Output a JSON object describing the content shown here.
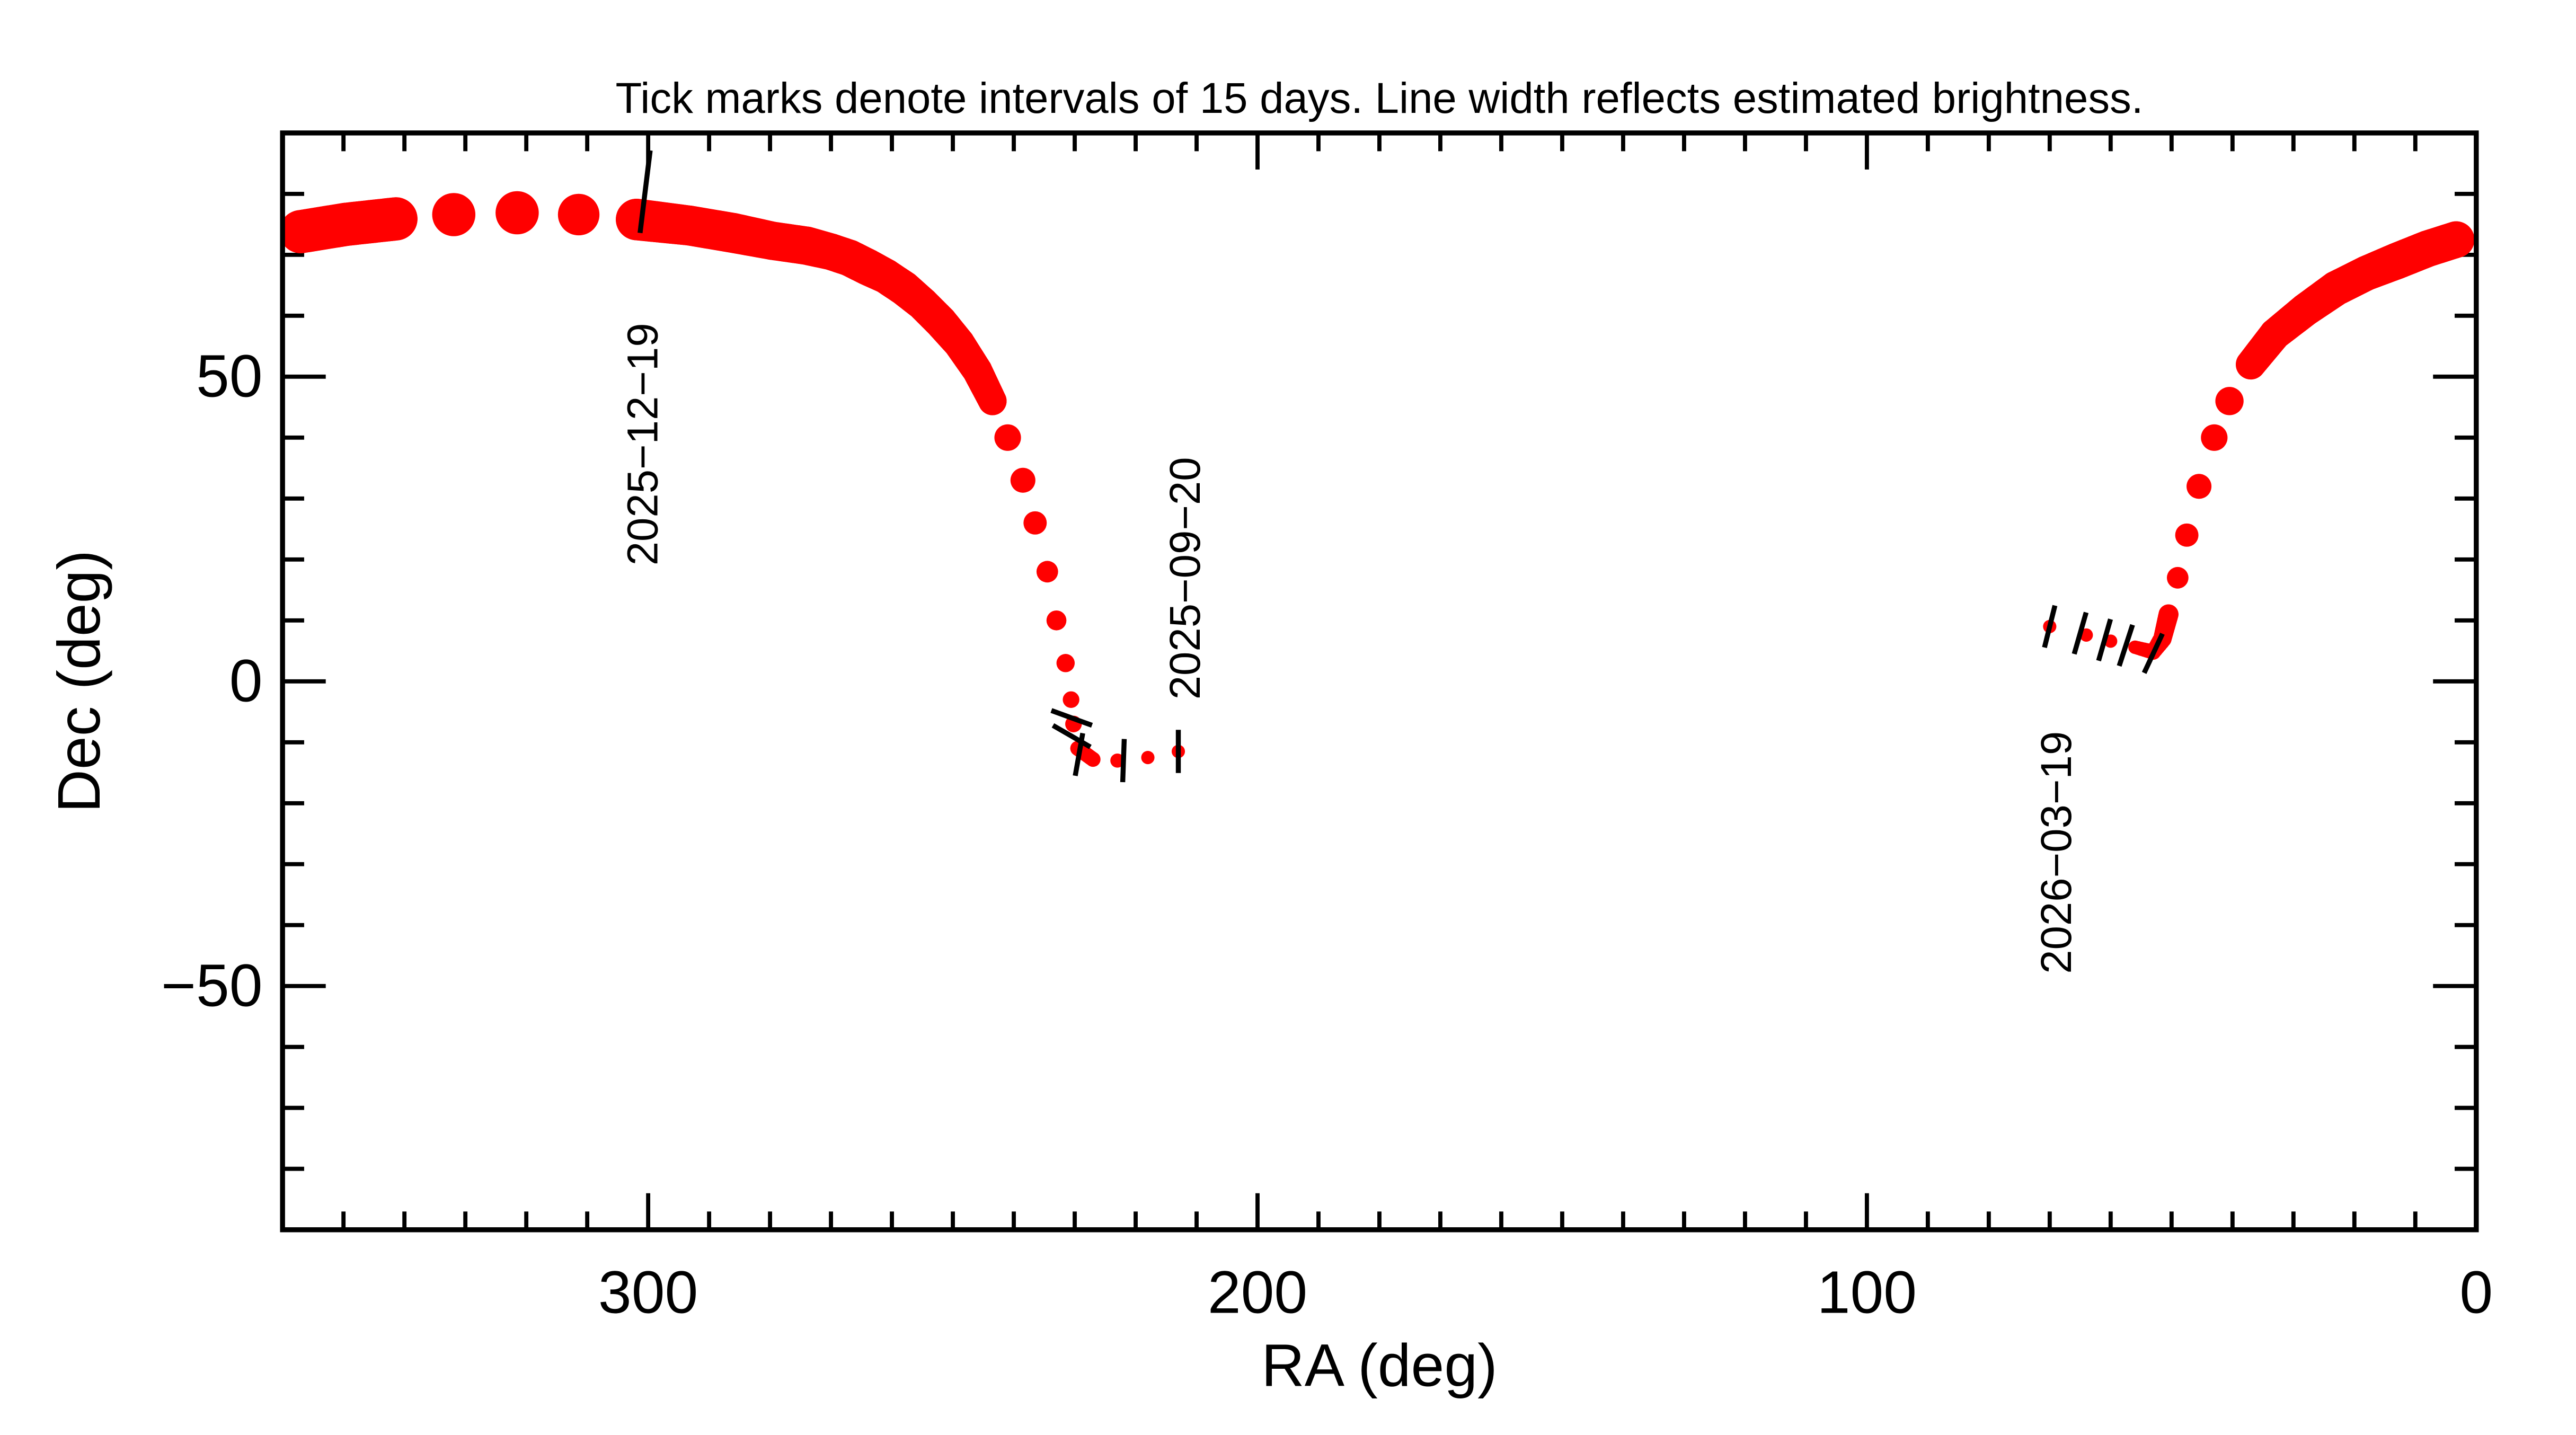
{
  "chart_data": {
    "type": "line",
    "title": "Tick marks denote intervals of 15 days.  Line width reflects estimated brightness.",
    "xlabel": "RA (deg)",
    "ylabel": "Dec (deg)",
    "xlim": [
      360,
      0
    ],
    "ylim": [
      -90,
      90
    ],
    "x_ticks": [
      300,
      200,
      100,
      0
    ],
    "x_tick_labels": [
      "300",
      "200",
      "100",
      "0"
    ],
    "y_ticks": [
      50,
      0,
      -50
    ],
    "y_tick_labels": [
      "50",
      "0",
      "−50"
    ],
    "x_minor_step": 10,
    "y_minor_step": 10,
    "grid": false,
    "line_color": "#ff0000",
    "tick_color": "#000000",
    "series": [
      {
        "points": [
          {
            "ra": 213,
            "dec": -11.5,
            "brightness_weight": 8
          },
          {
            "ra": 218,
            "dec": -12.5,
            "brightness_weight": 8
          },
          {
            "ra": 223,
            "dec": -13,
            "brightness_weight": 8.5
          },
          {
            "ra": 227,
            "dec": -12.8,
            "brightness_weight": 9
          },
          {
            "ra": 229.5,
            "dec": -11,
            "brightness_weight": 9
          },
          {
            "ra": 230.2,
            "dec": -7,
            "brightness_weight": 10
          },
          {
            "ra": 230.6,
            "dec": -3,
            "brightness_weight": 10
          },
          {
            "ra": 231.5,
            "dec": 3,
            "brightness_weight": 11
          },
          {
            "ra": 233,
            "dec": 10,
            "brightness_weight": 12
          },
          {
            "ra": 234.5,
            "dec": 18,
            "brightness_weight": 13
          },
          {
            "ra": 236.5,
            "dec": 26,
            "brightness_weight": 14
          },
          {
            "ra": 238.5,
            "dec": 33,
            "brightness_weight": 15
          },
          {
            "ra": 241,
            "dec": 40,
            "brightness_weight": 16
          },
          {
            "ra": 243.5,
            "dec": 46,
            "brightness_weight": 17
          },
          {
            "ra": 246,
            "dec": 51,
            "brightness_weight": 18
          },
          {
            "ra": 249,
            "dec": 55.5,
            "brightness_weight": 19
          },
          {
            "ra": 252,
            "dec": 59,
            "brightness_weight": 20
          },
          {
            "ra": 255,
            "dec": 62,
            "brightness_weight": 20
          },
          {
            "ra": 258,
            "dec": 64.5,
            "brightness_weight": 21
          },
          {
            "ra": 261,
            "dec": 66.5,
            "brightness_weight": 21
          },
          {
            "ra": 264,
            "dec": 68,
            "brightness_weight": 22
          },
          {
            "ra": 267,
            "dec": 69.5,
            "brightness_weight": 22
          },
          {
            "ra": 270,
            "dec": 70.5,
            "brightness_weight": 22
          },
          {
            "ra": 274,
            "dec": 71.5,
            "brightness_weight": 23
          },
          {
            "ra": 279.6,
            "dec": 72.3,
            "brightness_weight": 23
          },
          {
            "ra": 286.1,
            "dec": 73.6,
            "brightness_weight": 24
          },
          {
            "ra": 293.2,
            "dec": 74.8,
            "brightness_weight": 24
          },
          {
            "ra": 301.9,
            "dec": 75.8,
            "brightness_weight": 25
          },
          {
            "ra": 311.4,
            "dec": 76.6,
            "brightness_weight": 25
          },
          {
            "ra": 321.5,
            "dec": 76.9,
            "brightness_weight": 26
          },
          {
            "ra": 331.9,
            "dec": 76.6,
            "brightness_weight": 26
          },
          {
            "ra": 341.4,
            "dec": 75.9,
            "brightness_weight": 26
          },
          {
            "ra": 349.6,
            "dec": 75,
            "brightness_weight": 26
          },
          {
            "ra": 357,
            "dec": 73.8,
            "brightness_weight": 26
          }
        ]
      },
      {
        "points": [
          {
            "ra": 3.3,
            "dec": 72.5,
            "brightness_weight": 22
          },
          {
            "ra": 8,
            "dec": 71,
            "brightness_weight": 22
          },
          {
            "ra": 13,
            "dec": 69,
            "brightness_weight": 22
          },
          {
            "ra": 18,
            "dec": 67,
            "brightness_weight": 21
          },
          {
            "ra": 23,
            "dec": 64.5,
            "brightness_weight": 21
          },
          {
            "ra": 28,
            "dec": 61,
            "brightness_weight": 20
          },
          {
            "ra": 33,
            "dec": 57,
            "brightness_weight": 19
          },
          {
            "ra": 37,
            "dec": 52,
            "brightness_weight": 18
          },
          {
            "ra": 40.5,
            "dec": 46,
            "brightness_weight": 17
          },
          {
            "ra": 43,
            "dec": 40,
            "brightness_weight": 16
          },
          {
            "ra": 45.5,
            "dec": 32,
            "brightness_weight": 15
          },
          {
            "ra": 47.5,
            "dec": 24,
            "brightness_weight": 14
          },
          {
            "ra": 49,
            "dec": 17,
            "brightness_weight": 13
          },
          {
            "ra": 50.5,
            "dec": 11,
            "brightness_weight": 12
          },
          {
            "ra": 51.5,
            "dec": 7,
            "brightness_weight": 11
          },
          {
            "ra": 53,
            "dec": 4.8,
            "brightness_weight": 9
          },
          {
            "ra": 56,
            "dec": 5.6,
            "brightness_weight": 8
          },
          {
            "ra": 60,
            "dec": 6.6,
            "brightness_weight": 8
          },
          {
            "ra": 64,
            "dec": 7.6,
            "brightness_weight": 8
          },
          {
            "ra": 70,
            "dec": 9,
            "brightness_weight": 8
          }
        ]
      }
    ],
    "interval_ticks": [
      {
        "ra": 213,
        "dec": -11.5,
        "angle": 90
      },
      {
        "ra": 222,
        "dec": -13,
        "angle": 88
      },
      {
        "ra": 229.3,
        "dec": -12,
        "angle": 80
      },
      {
        "ra": 230.5,
        "dec": -9,
        "angle": -30
      },
      {
        "ra": 230.5,
        "dec": -6,
        "angle": -20
      },
      {
        "ra": 300.5,
        "dec": 76,
        "angle": 83
      },
      {
        "ra": 53,
        "dec": 4.6,
        "angle": 65
      },
      {
        "ra": 57.5,
        "dec": 5.9,
        "angle": 72
      },
      {
        "ra": 61,
        "dec": 6.8,
        "angle": 74
      },
      {
        "ra": 65,
        "dec": 7.9,
        "angle": 74
      },
      {
        "ra": 70,
        "dec": 9,
        "angle": 76
      }
    ],
    "date_labels": [
      {
        "text": "2025−12−19",
        "ra": 298.5,
        "dec": 19
      },
      {
        "text": "2025−09−20",
        "ra": 209.5,
        "dec": -3
      },
      {
        "text": "2026−03−19",
        "ra": 66.5,
        "dec": -48
      }
    ]
  }
}
